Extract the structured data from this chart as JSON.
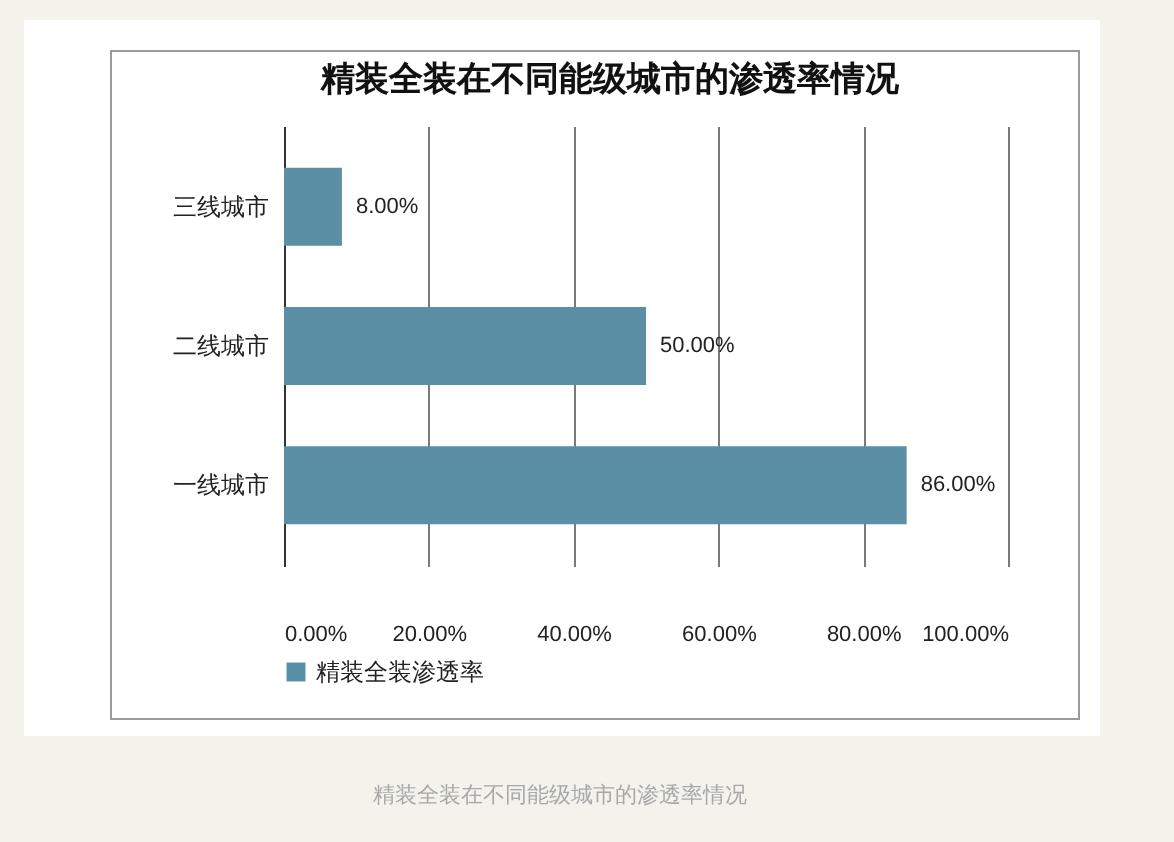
{
  "chart_data": {
    "type": "bar",
    "orientation": "horizontal",
    "title": "精装全装在不同能级城市的渗透率情况",
    "categories": [
      "三线城市",
      "二线城市",
      "一线城市"
    ],
    "series": [
      {
        "name": "精装全装渗透率",
        "color": "#5b8fa6",
        "values": [
          8,
          50,
          86
        ],
        "value_labels": [
          "8.00%",
          "50.00%",
          "86.00%"
        ]
      }
    ],
    "xlim": [
      0,
      100
    ],
    "xticks": [
      {
        "value": 0,
        "label": "0.00%"
      },
      {
        "value": 20,
        "label": "20.00%"
      },
      {
        "value": 40,
        "label": "40.00%"
      },
      {
        "value": 60,
        "label": "60.00%"
      },
      {
        "value": 80,
        "label": "80.00%"
      },
      {
        "value": 100,
        "label": "100.00%"
      }
    ],
    "grid": "x",
    "legend": "bottom",
    "annotations": [
      "精装全装在不同能级城市的渗透率情况"
    ]
  }
}
